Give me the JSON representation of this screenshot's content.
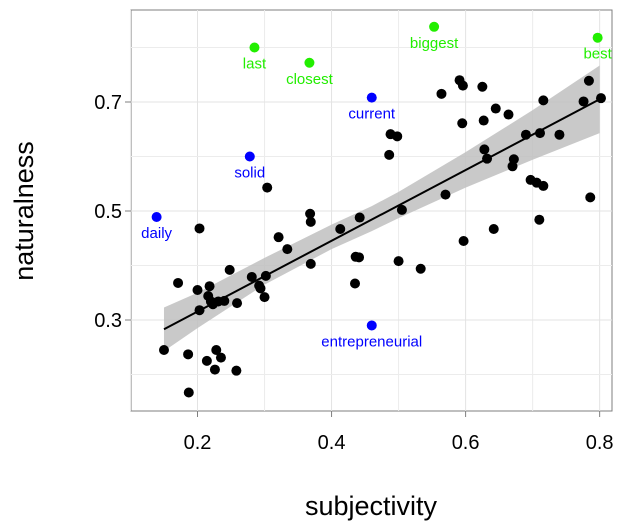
{
  "chart_data": {
    "type": "scatter",
    "xlabel": "subjectivity",
    "ylabel": "naturalness",
    "xlim": [
      0.1,
      0.83
    ],
    "ylim": [
      0.1,
      0.88
    ],
    "x_ticks": [
      0.2,
      0.4,
      0.6,
      0.8
    ],
    "y_ticks": [
      0.3,
      0.5,
      0.7
    ],
    "x_tick_labels": [
      "0.2",
      "0.4",
      "0.6",
      "0.8"
    ],
    "y_tick_labels": [
      "0.3",
      "0.5",
      "0.7"
    ],
    "grid": true,
    "colors": {
      "points": "#000000",
      "labeled_blue": "#0000ff",
      "labeled_green": "#22ee00",
      "band": "#bfbfbf",
      "panel": "#ffffff",
      "grid": "#ebebeb"
    },
    "regression": {
      "x": [
        0.15,
        0.8
      ],
      "y": [
        0.283,
        0.705
      ]
    },
    "confidence_band": {
      "x": [
        0.15,
        0.2,
        0.3,
        0.4,
        0.46,
        0.5,
        0.6,
        0.7,
        0.8
      ],
      "lower": [
        0.243,
        0.285,
        0.365,
        0.43,
        0.463,
        0.487,
        0.543,
        0.594,
        0.643
      ],
      "upper": [
        0.323,
        0.35,
        0.414,
        0.475,
        0.509,
        0.535,
        0.608,
        0.685,
        0.767
      ]
    },
    "points": [
      {
        "x": 0.15,
        "y": 0.245
      },
      {
        "x": 0.171,
        "y": 0.368
      },
      {
        "x": 0.186,
        "y": 0.237
      },
      {
        "x": 0.187,
        "y": 0.167
      },
      {
        "x": 0.2,
        "y": 0.355
      },
      {
        "x": 0.203,
        "y": 0.468
      },
      {
        "x": 0.203,
        "y": 0.318
      },
      {
        "x": 0.214,
        "y": 0.225
      },
      {
        "x": 0.216,
        "y": 0.344
      },
      {
        "x": 0.218,
        "y": 0.362
      },
      {
        "x": 0.22,
        "y": 0.334
      },
      {
        "x": 0.223,
        "y": 0.329
      },
      {
        "x": 0.226,
        "y": 0.209
      },
      {
        "x": 0.228,
        "y": 0.245
      },
      {
        "x": 0.231,
        "y": 0.334
      },
      {
        "x": 0.235,
        "y": 0.231
      },
      {
        "x": 0.24,
        "y": 0.335
      },
      {
        "x": 0.248,
        "y": 0.392
      },
      {
        "x": 0.258,
        "y": 0.207
      },
      {
        "x": 0.259,
        "y": 0.331
      },
      {
        "x": 0.281,
        "y": 0.379
      },
      {
        "x": 0.292,
        "y": 0.363
      },
      {
        "x": 0.294,
        "y": 0.358
      },
      {
        "x": 0.3,
        "y": 0.342
      },
      {
        "x": 0.302,
        "y": 0.381
      },
      {
        "x": 0.304,
        "y": 0.543
      },
      {
        "x": 0.321,
        "y": 0.452
      },
      {
        "x": 0.334,
        "y": 0.43
      },
      {
        "x": 0.368,
        "y": 0.495
      },
      {
        "x": 0.369,
        "y": 0.48
      },
      {
        "x": 0.369,
        "y": 0.403
      },
      {
        "x": 0.413,
        "y": 0.467
      },
      {
        "x": 0.435,
        "y": 0.367
      },
      {
        "x": 0.436,
        "y": 0.416
      },
      {
        "x": 0.441,
        "y": 0.415
      },
      {
        "x": 0.442,
        "y": 0.488
      },
      {
        "x": 0.486,
        "y": 0.603
      },
      {
        "x": 0.488,
        "y": 0.641
      },
      {
        "x": 0.498,
        "y": 0.637
      },
      {
        "x": 0.5,
        "y": 0.408
      },
      {
        "x": 0.505,
        "y": 0.502
      },
      {
        "x": 0.533,
        "y": 0.394
      },
      {
        "x": 0.564,
        "y": 0.715
      },
      {
        "x": 0.57,
        "y": 0.53
      },
      {
        "x": 0.591,
        "y": 0.74
      },
      {
        "x": 0.595,
        "y": 0.661
      },
      {
        "x": 0.596,
        "y": 0.73
      },
      {
        "x": 0.597,
        "y": 0.445
      },
      {
        "x": 0.625,
        "y": 0.728
      },
      {
        "x": 0.627,
        "y": 0.666
      },
      {
        "x": 0.628,
        "y": 0.613
      },
      {
        "x": 0.632,
        "y": 0.596
      },
      {
        "x": 0.642,
        "y": 0.467
      },
      {
        "x": 0.645,
        "y": 0.688
      },
      {
        "x": 0.664,
        "y": 0.677
      },
      {
        "x": 0.67,
        "y": 0.582
      },
      {
        "x": 0.672,
        "y": 0.595
      },
      {
        "x": 0.69,
        "y": 0.64
      },
      {
        "x": 0.697,
        "y": 0.557
      },
      {
        "x": 0.706,
        "y": 0.552
      },
      {
        "x": 0.71,
        "y": 0.484
      },
      {
        "x": 0.711,
        "y": 0.643
      },
      {
        "x": 0.716,
        "y": 0.703
      },
      {
        "x": 0.716,
        "y": 0.546
      },
      {
        "x": 0.74,
        "y": 0.64
      },
      {
        "x": 0.776,
        "y": 0.701
      },
      {
        "x": 0.784,
        "y": 0.739
      },
      {
        "x": 0.786,
        "y": 0.525
      },
      {
        "x": 0.802,
        "y": 0.707
      }
    ],
    "labeled_points": [
      {
        "label": "daily",
        "x": 0.139,
        "y": 0.489,
        "group": "blue",
        "label_pos": "below"
      },
      {
        "label": "solid",
        "x": 0.278,
        "y": 0.6,
        "group": "blue",
        "label_pos": "below"
      },
      {
        "label": "current",
        "x": 0.46,
        "y": 0.708,
        "group": "blue",
        "label_pos": "below"
      },
      {
        "label": "entrepreneurial",
        "x": 0.46,
        "y": 0.29,
        "group": "blue",
        "label_pos": "below"
      },
      {
        "label": "last",
        "x": 0.285,
        "y": 0.8,
        "group": "green",
        "label_pos": "below"
      },
      {
        "label": "closest",
        "x": 0.367,
        "y": 0.772,
        "group": "green",
        "label_pos": "below"
      },
      {
        "label": "biggest",
        "x": 0.553,
        "y": 0.838,
        "group": "green",
        "label_pos": "below"
      },
      {
        "label": "best",
        "x": 0.797,
        "y": 0.818,
        "group": "green",
        "label_pos": "below"
      }
    ]
  }
}
